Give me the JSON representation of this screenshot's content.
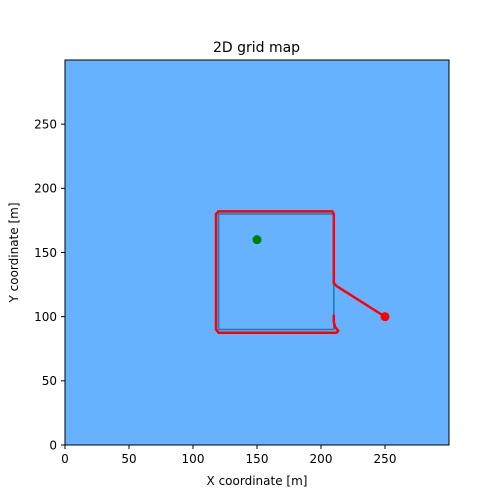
{
  "chart_data": {
    "type": "line",
    "title": "2D grid map",
    "xlabel": "X coordinate [m]",
    "ylabel": "Y coordinate [m]",
    "xlim": [
      0,
      300
    ],
    "ylim": [
      0,
      300
    ],
    "xticks": [
      0,
      50,
      100,
      150,
      200,
      250
    ],
    "yticks": [
      0,
      50,
      100,
      150,
      200,
      250
    ],
    "grid": false,
    "background_color": "#66b2ff",
    "series": [
      {
        "kind": "line",
        "color": "#1f77b4",
        "points": [
          [
            120,
            90
          ],
          [
            120,
            180
          ],
          [
            210,
            180
          ],
          [
            210,
            90
          ],
          [
            120,
            90
          ]
        ]
      },
      {
        "kind": "line",
        "color": "#ff0000",
        "points": [
          [
            250,
            100
          ],
          [
            212,
            124
          ],
          [
            210,
            126
          ],
          [
            210,
            180
          ],
          [
            209,
            182
          ],
          [
            120,
            182
          ],
          [
            118,
            180
          ],
          [
            118,
            90
          ],
          [
            120,
            87.5
          ],
          [
            212,
            87.5
          ],
          [
            213.5,
            89
          ],
          [
            211,
            92
          ],
          [
            210,
            96
          ],
          [
            210,
            101
          ]
        ]
      },
      {
        "kind": "point",
        "color": "#ff0000",
        "points": [
          [
            250,
            100
          ]
        ]
      },
      {
        "kind": "point",
        "color": "#008000",
        "points": [
          [
            150,
            160
          ]
        ]
      }
    ]
  }
}
